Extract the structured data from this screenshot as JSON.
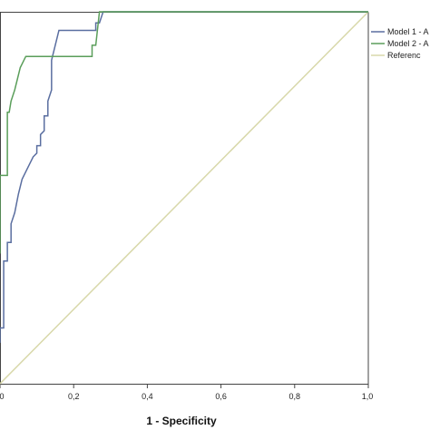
{
  "chart_data": {
    "type": "line",
    "title": "",
    "xlabel": "1 - Specificity",
    "ylabel": "",
    "xlim": [
      0,
      1
    ],
    "ylim": [
      0,
      1
    ],
    "x_ticks": [
      "0",
      "0,2",
      "0,4",
      "0,6",
      "0,8",
      "1,0"
    ],
    "grid": false,
    "legend_placement": "top-right",
    "legend": [
      "Model 1 - A",
      "Model 2 - A",
      "Referenc"
    ],
    "series": [
      {
        "name": "Model 1 - A",
        "color": "#5a6ea0",
        "points": [
          [
            0,
            0.11
          ],
          [
            0,
            0.15
          ],
          [
            0.01,
            0.15
          ],
          [
            0.01,
            0.33
          ],
          [
            0.02,
            0.33
          ],
          [
            0.02,
            0.38
          ],
          [
            0.03,
            0.38
          ],
          [
            0.03,
            0.43
          ],
          [
            0.04,
            0.46
          ],
          [
            0.05,
            0.51
          ],
          [
            0.06,
            0.55
          ],
          [
            0.07,
            0.57
          ],
          [
            0.09,
            0.61
          ],
          [
            0.1,
            0.62
          ],
          [
            0.1,
            0.64
          ],
          [
            0.11,
            0.64
          ],
          [
            0.11,
            0.67
          ],
          [
            0.12,
            0.68
          ],
          [
            0.12,
            0.72
          ],
          [
            0.13,
            0.72
          ],
          [
            0.13,
            0.76
          ],
          [
            0.14,
            0.79
          ],
          [
            0.14,
            0.87
          ],
          [
            0.15,
            0.91
          ],
          [
            0.16,
            0.95
          ],
          [
            0.26,
            0.95
          ],
          [
            0.26,
            0.97
          ],
          [
            0.27,
            0.97
          ],
          [
            0.28,
            1
          ],
          [
            1,
            1
          ]
        ]
      },
      {
        "name": "Model 2 - A",
        "color": "#5a9e5a",
        "points": [
          [
            0,
            0.35
          ],
          [
            0,
            0.56
          ],
          [
            0.02,
            0.56
          ],
          [
            0.02,
            0.73
          ],
          [
            0.025,
            0.73
          ],
          [
            0.03,
            0.76
          ],
          [
            0.04,
            0.79
          ],
          [
            0.05,
            0.83
          ],
          [
            0.055,
            0.85
          ],
          [
            0.06,
            0.86
          ],
          [
            0.07,
            0.88
          ],
          [
            0.25,
            0.88
          ],
          [
            0.25,
            0.91
          ],
          [
            0.26,
            0.91
          ],
          [
            0.27,
            1
          ],
          [
            1,
            1
          ]
        ]
      },
      {
        "name": "Referenc",
        "color": "#d8d8aa",
        "points": [
          [
            0,
            0
          ],
          [
            1,
            1
          ]
        ]
      }
    ]
  }
}
